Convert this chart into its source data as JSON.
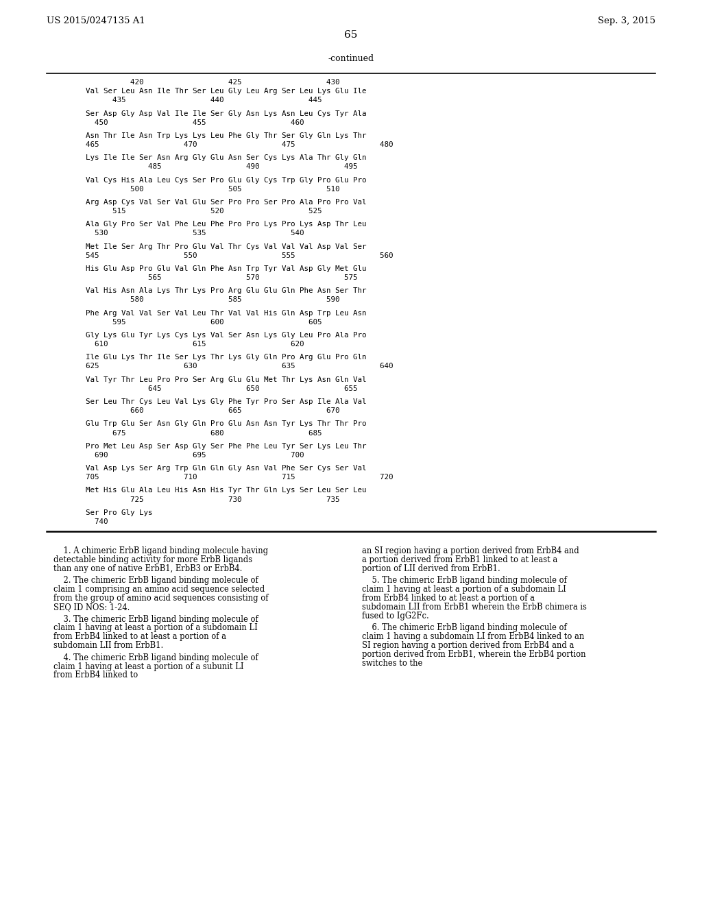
{
  "header_left": "US 2015/0247135 A1",
  "header_right": "Sep. 3, 2015",
  "page_number": "65",
  "continued_label": "-continued",
  "background_color": "#ffffff",
  "seq_lines": [
    "          420                   425                   430",
    "Val Ser Leu Asn Ile Thr Ser Leu Gly Leu Arg Ser Leu Lys Glu Ile",
    "      435                   440                   445",
    "",
    "Ser Asp Gly Asp Val Ile Ile Ser Gly Asn Lys Asn Leu Cys Tyr Ala",
    "  450                   455                   460",
    "",
    "Asn Thr Ile Asn Trp Lys Lys Leu Phe Gly Thr Ser Gly Gln Lys Thr",
    "465                   470                   475                   480",
    "",
    "Lys Ile Ile Ser Asn Arg Gly Glu Asn Ser Cys Lys Ala Thr Gly Gln",
    "              485                   490                   495",
    "",
    "Val Cys His Ala Leu Cys Ser Pro Glu Gly Cys Trp Gly Pro Glu Pro",
    "          500                   505                   510",
    "",
    "Arg Asp Cys Val Ser Val Glu Ser Pro Pro Ser Pro Ala Pro Pro Val",
    "      515                   520                   525",
    "",
    "Ala Gly Pro Ser Val Phe Leu Phe Pro Pro Lys Pro Lys Asp Thr Leu",
    "  530                   535                   540",
    "",
    "Met Ile Ser Arg Thr Pro Glu Val Thr Cys Val Val Val Asp Val Ser",
    "545                   550                   555                   560",
    "",
    "His Glu Asp Pro Glu Val Gln Phe Asn Trp Tyr Val Asp Gly Met Glu",
    "              565                   570                   575",
    "",
    "Val His Asn Ala Lys Thr Lys Pro Arg Glu Glu Gln Phe Asn Ser Thr",
    "          580                   585                   590",
    "",
    "Phe Arg Val Val Ser Val Leu Thr Val Val His Gln Asp Trp Leu Asn",
    "      595                   600                   605",
    "",
    "Gly Lys Glu Tyr Lys Cys Lys Val Ser Asn Lys Gly Leu Pro Ala Pro",
    "  610                   615                   620",
    "",
    "Ile Glu Lys Thr Ile Ser Lys Thr Lys Gly Gln Pro Arg Glu Pro Gln",
    "625                   630                   635                   640",
    "",
    "Val Tyr Thr Leu Pro Pro Ser Arg Glu Glu Met Thr Lys Asn Gln Val",
    "              645                   650                   655",
    "",
    "Ser Leu Thr Cys Leu Val Lys Gly Phe Tyr Pro Ser Asp Ile Ala Val",
    "          660                   665                   670",
    "",
    "Glu Trp Glu Ser Asn Gly Gln Pro Glu Asn Asn Tyr Lys Thr Thr Pro",
    "      675                   680                   685",
    "",
    "Pro Met Leu Asp Ser Asp Gly Ser Phe Phe Leu Tyr Ser Lys Leu Thr",
    "  690                   695                   700",
    "",
    "Val Asp Lys Ser Arg Trp Gln Gln Gly Asn Val Phe Ser Cys Ser Val",
    "705                   710                   715                   720",
    "",
    "Met His Glu Ala Leu His Asn His Tyr Thr Gln Lys Ser Leu Ser Leu",
    "          725                   730                   735",
    "",
    "Ser Pro Gly Lys",
    "  740"
  ],
  "claim1_left": "    1. A chimeric ErbB ligand binding molecule having detectable binding activity for more ErbB ligands than any one of native ErbB1, ErbB3 or ErbB4.",
  "claim2_left": "    2. The chimeric ErbB ligand binding molecule of claim 1 comprising an amino acid sequence selected from the group of amino acid sequences consisting of SEQ ID NOS: 1-24.",
  "claim3_left": "    3. The chimeric ErbB ligand binding molecule of claim 1 having at least a portion of a subdomain LI from ErbB4 linked to at least a portion of a subdomain LII from ErbB1.",
  "claim4_left": "    4. The chimeric ErbB ligand binding molecule of claim 1 having at least a portion of a subunit LI from ErbB4 linked to",
  "claim4_right": "an SI region having a portion derived from ErbB4 and a portion derived from ErbB1 linked to at least a portion of LII derived from ErbB1.",
  "claim5_right": "    5. The chimeric ErbB ligand binding molecule of claim 1 having at least a portion of a subdomain LI from ErbB4 linked to at least a portion of a subdomain LII from ErbB1 wherein the ErbB chimera is fused to IgG2Fc.",
  "claim6_right": "    6. The chimeric ErbB ligand binding molecule of claim 1 having a subdomain LI from ErbB4 linked to an SI region having a portion derived from ErbB4 and a portion derived from ErbB1, wherein the ErbB4 portion switches to the"
}
